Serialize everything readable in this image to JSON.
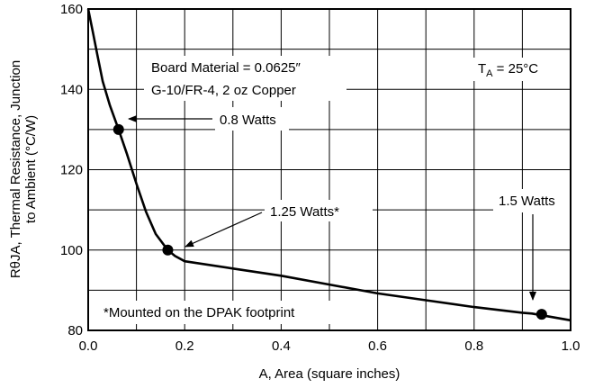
{
  "chart_data": {
    "type": "line",
    "title": "",
    "xlabel": "A, Area (square inches)",
    "ylabel_line1": "RθJA, Thermal Resistance, Junction",
    "ylabel_line2": "to Ambient (°C/W)",
    "xlim": [
      0.0,
      1.0
    ],
    "ylim": [
      80,
      160
    ],
    "x_ticks": [
      0.0,
      0.2,
      0.4,
      0.6,
      0.8,
      1.0
    ],
    "x_tick_labels": [
      "0.0",
      "0.2",
      "0.4",
      "0.6",
      "0.8",
      "1.0"
    ],
    "y_ticks": [
      80,
      100,
      120,
      140,
      160
    ],
    "y_tick_labels": [
      "80",
      "100",
      "120",
      "140",
      "160"
    ],
    "x_grid_step": 0.1,
    "y_grid_step": 10,
    "grid": true,
    "legend": "none",
    "series": [
      {
        "x": [
          0.0,
          0.01,
          0.02,
          0.03,
          0.045,
          0.063,
          0.08,
          0.1,
          0.12,
          0.14,
          0.165,
          0.18,
          0.2,
          0.3,
          0.4,
          0.5,
          0.6,
          0.7,
          0.8,
          0.9,
          0.92,
          1.0
        ],
        "y": [
          160,
          154,
          148,
          142,
          136,
          130,
          124,
          116.5,
          109.5,
          104,
          100,
          98.5,
          97.2,
          95.4,
          93.6,
          91.4,
          89.2,
          87.5,
          85.8,
          84.4,
          84.2,
          82.5
        ]
      }
    ],
    "points": [
      {
        "x": 0.063,
        "y": 130,
        "label": "0.8 Watts"
      },
      {
        "x": 0.165,
        "y": 100,
        "label": "1.25 Watts*"
      },
      {
        "x": 0.94,
        "y": 84,
        "label": "1.5 Watts"
      }
    ],
    "annotations": {
      "board_line1": "Board Material = 0.0625″",
      "board_line2": "G-10/FR-4, 2 oz Copper",
      "ta_prefix": "T",
      "ta_sub": "A",
      "ta_value": " = 25°C",
      "footnote": "*Mounted on the DPAK footprint"
    }
  }
}
